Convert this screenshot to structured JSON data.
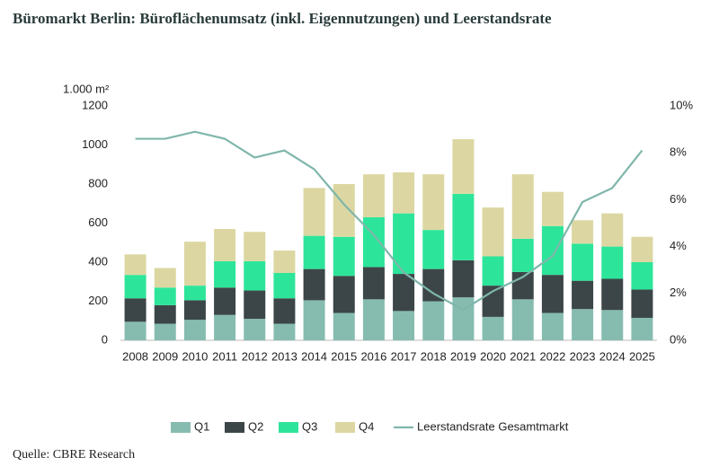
{
  "chart_data": {
    "type": "bar-line",
    "title": "Büromarkt Berlin: Büroflächenumsatz (inkl. Eigennutzungen) und Leerstandsrate",
    "y_label": "1.000 m²",
    "source": "Quelle: CBRE Research",
    "categories": [
      "2008",
      "2009",
      "2010",
      "2011",
      "2012",
      "2013",
      "2014",
      "2015",
      "2016",
      "2017",
      "2018",
      "2019",
      "2020",
      "2021",
      "2022",
      "2023",
      "2024",
      "2025"
    ],
    "series": [
      {
        "name": "Q1",
        "color": "#86bcb0",
        "values": [
          95,
          85,
          105,
          130,
          110,
          85,
          205,
          140,
          210,
          150,
          200,
          220,
          120,
          210,
          140,
          160,
          155,
          115
        ]
      },
      {
        "name": "Q2",
        "color": "#3c4648",
        "values": [
          120,
          95,
          100,
          140,
          145,
          130,
          160,
          190,
          165,
          190,
          165,
          190,
          160,
          140,
          195,
          145,
          160,
          145
        ]
      },
      {
        "name": "Q3",
        "color": "#2de59a",
        "values": [
          120,
          90,
          75,
          135,
          150,
          130,
          170,
          200,
          255,
          310,
          200,
          340,
          150,
          170,
          250,
          190,
          165,
          140
        ]
      },
      {
        "name": "Q4",
        "color": "#dcd7a2",
        "values": [
          105,
          100,
          225,
          165,
          150,
          115,
          245,
          270,
          220,
          210,
          285,
          280,
          250,
          330,
          175,
          120,
          170,
          130
        ]
      },
      {
        "name": "Leerstandsrate Gesamtmarkt",
        "color": "#7fb6ab",
        "axis": "y2",
        "type": "line",
        "values": [
          8.6,
          8.6,
          8.9,
          8.6,
          7.8,
          8.1,
          7.3,
          5.8,
          4.5,
          2.9,
          2.0,
          1.3,
          2.1,
          2.7,
          3.6,
          5.9,
          6.5,
          8.1
        ]
      }
    ],
    "ylim": [
      0,
      1200
    ],
    "yticks": [
      0,
      200,
      400,
      600,
      800,
      1000,
      1200
    ],
    "y2lim": [
      0,
      10
    ],
    "y2ticks": [
      {
        "value": 0,
        "label": "0%"
      },
      {
        "value": 2,
        "label": "2%"
      },
      {
        "value": 4,
        "label": "4%"
      },
      {
        "value": 6,
        "label": "6%"
      },
      {
        "value": 8,
        "label": "8%"
      },
      {
        "value": 10,
        "label": "10%"
      }
    ],
    "stacked": true,
    "grid": false,
    "legend": "bottom"
  }
}
